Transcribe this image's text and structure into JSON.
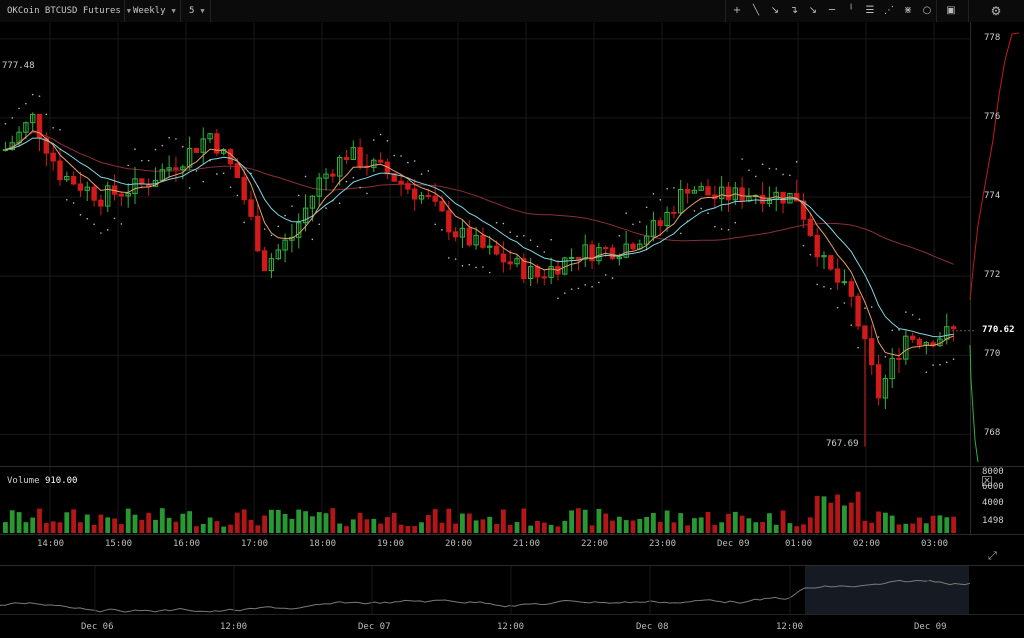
{
  "toolbar": {
    "symbol": "OKCoin BTCUSD Futures",
    "period": "Weekly",
    "interval": "5",
    "tools": [
      {
        "name": "crosshair-icon",
        "glyph": "+"
      },
      {
        "name": "line-icon",
        "glyph": "╲"
      },
      {
        "name": "ray-icon",
        "glyph": "↘"
      },
      {
        "name": "arrow-curve-icon",
        "glyph": "↴"
      },
      {
        "name": "arrow-icon",
        "glyph": "↘"
      },
      {
        "name": "horizontal-line-icon",
        "glyph": "─"
      },
      {
        "name": "vertical-line-icon",
        "glyph": "╵"
      },
      {
        "name": "fib-icon",
        "glyph": "☰"
      },
      {
        "name": "pitchfork-icon",
        "glyph": "⋰"
      },
      {
        "name": "gann-icon",
        "glyph": "⋇"
      },
      {
        "name": "circle-icon",
        "glyph": "○"
      }
    ],
    "panel_icon": "▣",
    "settings_icon": "⚙"
  },
  "price_axis": {
    "ticks": [
      "778",
      "776",
      "774",
      "772",
      "770",
      "768"
    ],
    "last_price": "770.62",
    "high_label": "777.48",
    "low_label": "767.69"
  },
  "volume": {
    "label": "Volume",
    "value": "910.00",
    "ticks": [
      "8000",
      "6000",
      "4000",
      "2000",
      "1498"
    ],
    "close_glyph": "✕"
  },
  "time_axis": [
    "14:00",
    "15:00",
    "16:00",
    "17:00",
    "18:00",
    "19:00",
    "20:00",
    "21:00",
    "22:00",
    "23:00",
    "Dec 09",
    "01:00",
    "02:00",
    "03:00"
  ],
  "navigator": {
    "labels": [
      "Dec 06",
      "12:00",
      "Dec 07",
      "12:00",
      "Dec 08",
      "12:00",
      "Dec 09"
    ],
    "expand_glyph": "⤢"
  },
  "chart_data": {
    "type": "candlestick",
    "title": "OKCoin BTCUSD Futures",
    "ylim": [
      767.3,
      778.4
    ],
    "volume_ylim": [
      0,
      8000
    ],
    "colors": {
      "up": "#2fb33b",
      "down": "#d11a1a",
      "ema_fast": "#e8a26b",
      "ema_slow": "#7fd6e0",
      "sma_long": "#8a2f3a",
      "psar": "#b8b8b8"
    },
    "candles": []
  }
}
